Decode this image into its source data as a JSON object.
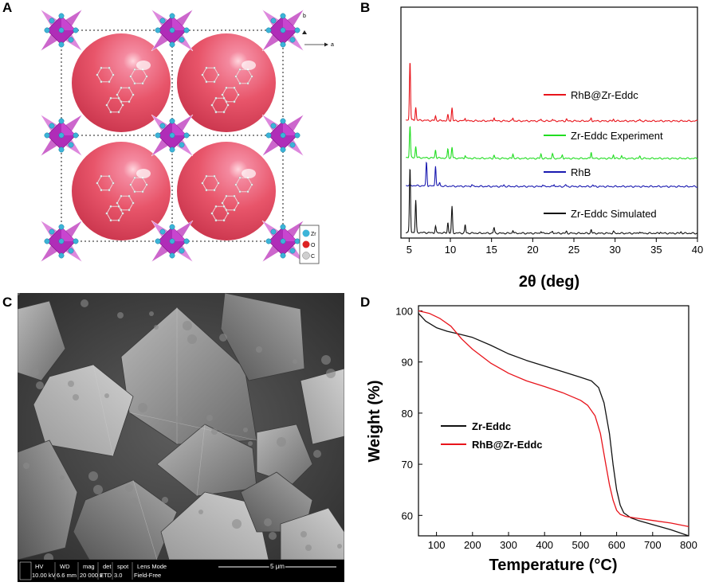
{
  "panels": {
    "a": {
      "letter": "A",
      "axis_b": "b",
      "axis_a": "a",
      "legend": [
        "Zr",
        "O",
        "C"
      ]
    },
    "b": {
      "letter": "B"
    },
    "c": {
      "letter": "C"
    },
    "d": {
      "letter": "D"
    }
  },
  "sem": {
    "headers": [
      "HV",
      "WD",
      "mag",
      "det",
      "spot",
      "Lens Mode"
    ],
    "values": [
      "10.00 kV",
      "6.6 mm",
      "20 000 x",
      "ETD",
      "3.0",
      "Field-Free"
    ],
    "scale_label": "5 μm"
  },
  "colors": {
    "red": "#e8141b",
    "green": "#22dd22",
    "blue": "#1a1ab0",
    "black": "#111111",
    "sphere": "#e8556a",
    "zr": "#3cb4d8",
    "polyhedron": "#b02cb8"
  },
  "chart_data": [
    {
      "type": "line",
      "panel": "B",
      "xlabel": "2θ (deg)",
      "ylabel": "",
      "xlim": [
        4,
        40
      ],
      "xticks": [
        5,
        10,
        15,
        20,
        25,
        30,
        35,
        40
      ],
      "series": [
        {
          "name": "RhB@Zr-Eddc",
          "color": "#e8141b",
          "offset": 3.0,
          "peaks": [
            [
              5.1,
              1.6
            ],
            [
              5.8,
              0.35
            ],
            [
              8.2,
              0.12
            ],
            [
              9.7,
              0.15
            ],
            [
              10.2,
              0.35
            ],
            [
              11.8,
              0.08
            ],
            [
              15.3,
              0.1
            ],
            [
              17.6,
              0.08
            ],
            [
              21.0,
              0.05
            ],
            [
              22.4,
              0.05
            ],
            [
              24.1,
              0.05
            ],
            [
              27.1,
              0.08
            ],
            [
              29.8,
              0.05
            ],
            [
              33.0,
              0.04
            ]
          ]
        },
        {
          "name": "Zr-Eddc Experiment",
          "color": "#22dd22",
          "offset": 2.0,
          "peaks": [
            [
              5.1,
              0.85
            ],
            [
              5.8,
              0.3
            ],
            [
              8.2,
              0.22
            ],
            [
              9.7,
              0.25
            ],
            [
              10.2,
              0.3
            ],
            [
              11.8,
              0.08
            ],
            [
              15.3,
              0.08
            ],
            [
              17.6,
              0.12
            ],
            [
              21.0,
              0.12
            ],
            [
              22.4,
              0.12
            ],
            [
              23.6,
              0.1
            ],
            [
              27.1,
              0.18
            ],
            [
              29.8,
              0.1
            ],
            [
              30.8,
              0.08
            ],
            [
              33.0,
              0.06
            ]
          ]
        },
        {
          "name": "RhB",
          "color": "#1a1ab0",
          "offset": 1.25,
          "peaks": [
            [
              7.1,
              0.65
            ],
            [
              8.2,
              0.55
            ],
            [
              8.7,
              0.1
            ],
            [
              12.6,
              0.05
            ],
            [
              16.5,
              0.04
            ],
            [
              21.2,
              0.05
            ],
            [
              22.6,
              0.06
            ],
            [
              24.0,
              0.05
            ],
            [
              27.3,
              0.04
            ]
          ]
        },
        {
          "name": "Zr-Eddc Simulated",
          "color": "#111111",
          "offset": 0.0,
          "peaks": [
            [
              5.1,
              1.75
            ],
            [
              5.8,
              0.85
            ],
            [
              8.2,
              0.18
            ],
            [
              9.7,
              0.28
            ],
            [
              10.2,
              0.7
            ],
            [
              11.8,
              0.22
            ],
            [
              15.3,
              0.15
            ],
            [
              17.6,
              0.08
            ],
            [
              21.0,
              0.06
            ],
            [
              22.4,
              0.06
            ],
            [
              24.1,
              0.05
            ],
            [
              27.1,
              0.1
            ],
            [
              29.8,
              0.05
            ],
            [
              33.0,
              0.05
            ],
            [
              35.5,
              0.04
            ],
            [
              38.0,
              0.04
            ]
          ]
        }
      ]
    },
    {
      "type": "line",
      "panel": "D",
      "xlabel": "Temperature (°C)",
      "ylabel": "Weight (%)",
      "xlim": [
        50,
        800
      ],
      "ylim": [
        56,
        101
      ],
      "xticks": [
        100,
        200,
        300,
        400,
        500,
        600,
        700,
        800
      ],
      "yticks": [
        60,
        70,
        80,
        90,
        100
      ],
      "legend_position": "lower-left",
      "series": [
        {
          "name": "Zr-Eddc",
          "color": "#111111",
          "x": [
            50,
            70,
            100,
            130,
            160,
            200,
            250,
            300,
            350,
            400,
            450,
            500,
            530,
            550,
            565,
            580,
            590,
            600,
            610,
            620,
            640,
            660,
            700,
            750,
            800
          ],
          "y": [
            99.5,
            98.0,
            96.7,
            96.0,
            95.5,
            94.8,
            93.3,
            91.6,
            90.3,
            89.2,
            88.1,
            87.0,
            86.3,
            85.0,
            82.0,
            76.0,
            70.0,
            65.0,
            62.0,
            60.5,
            59.5,
            59.0,
            58.2,
            57.2,
            56.0
          ]
        },
        {
          "name": "RhB@Zr-Eddc",
          "color": "#e8141b",
          "x": [
            50,
            80,
            110,
            140,
            170,
            200,
            250,
            300,
            350,
            400,
            450,
            500,
            520,
            540,
            555,
            570,
            580,
            590,
            600,
            610,
            625,
            650,
            700,
            750,
            800
          ],
          "y": [
            100.0,
            99.5,
            98.5,
            97.0,
            94.5,
            92.5,
            89.8,
            87.8,
            86.3,
            85.2,
            84.0,
            82.5,
            81.5,
            79.5,
            76.0,
            70.0,
            66.0,
            63.0,
            61.0,
            60.2,
            59.8,
            59.5,
            59.0,
            58.5,
            57.8
          ]
        }
      ]
    }
  ]
}
